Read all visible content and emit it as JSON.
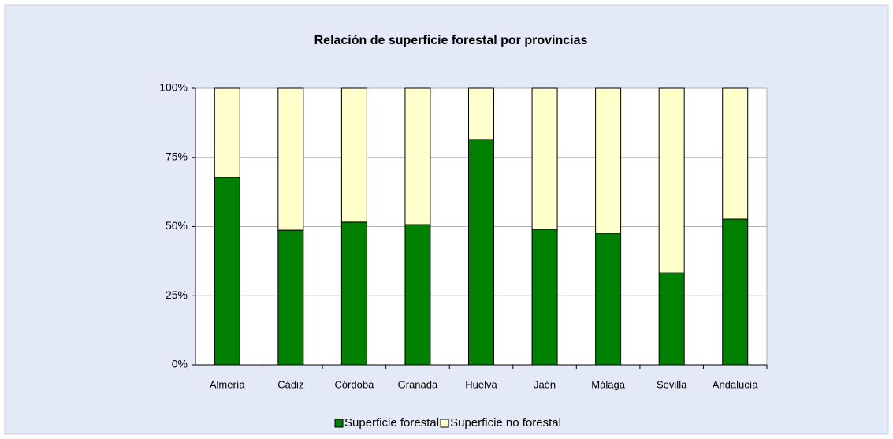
{
  "chart_data": {
    "type": "stacked_bar_100",
    "title": "Relación de superficie forestal por provincias",
    "categories": [
      "Almería",
      "Cádiz",
      "Córdoba",
      "Granada",
      "Huelva",
      "Jaén",
      "Málaga",
      "Sevilla",
      "Andalucía"
    ],
    "series": [
      {
        "name": "Superficie forestal",
        "color": "#008000",
        "values": [
          67.8,
          48.7,
          51.6,
          50.7,
          81.5,
          49.0,
          47.6,
          33.3,
          52.7
        ]
      },
      {
        "name": "Superficie no forestal",
        "color": "#ffffcc",
        "values": [
          32.2,
          51.3,
          48.4,
          49.3,
          18.5,
          51.0,
          52.4,
          66.7,
          47.3
        ]
      }
    ],
    "ylim": [
      0,
      100
    ],
    "yticks": [
      {
        "value": 0,
        "label": "0%"
      },
      {
        "value": 25,
        "label": "25%"
      },
      {
        "value": 50,
        "label": "50%"
      },
      {
        "value": 75,
        "label": "75%"
      },
      {
        "value": 100,
        "label": "100%"
      }
    ],
    "grid": true,
    "legend": "bottom"
  }
}
